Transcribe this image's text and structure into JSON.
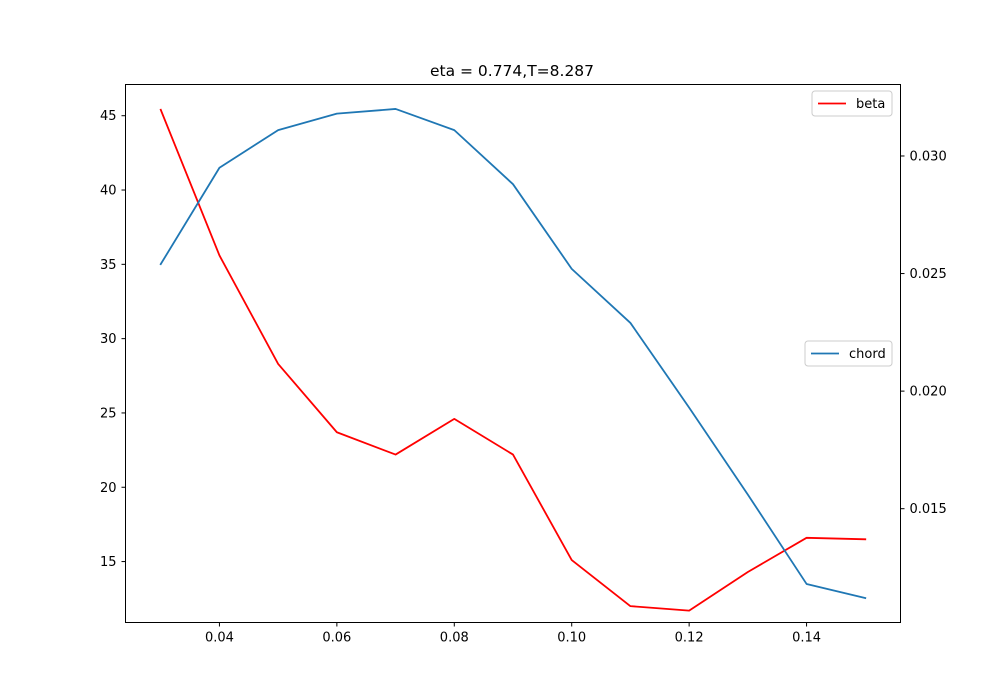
{
  "chart_data": {
    "type": "line",
    "title": "eta = 0.774,T=8.287",
    "xlabel": "",
    "ylabel": "",
    "y2label": "",
    "x": [
      0.03,
      0.04,
      0.05,
      0.06,
      0.07,
      0.08,
      0.09,
      0.1,
      0.11,
      0.12,
      0.13,
      0.14,
      0.15
    ],
    "xlim": [
      0.024,
      0.156
    ],
    "ylim": [
      10.9,
      47.1
    ],
    "y2lim": [
      0.01016,
      0.03304
    ],
    "x_ticks": [
      "0.04",
      "0.06",
      "0.08",
      "0.10",
      "0.12",
      "0.14"
    ],
    "y_ticks": [
      "15",
      "20",
      "25",
      "30",
      "35",
      "40",
      "45"
    ],
    "y2_ticks": [
      "0.015",
      "0.020",
      "0.025",
      "0.030"
    ],
    "grid": false,
    "series": [
      {
        "name": "beta",
        "axis": "left",
        "color": "#ff0000",
        "legend_location": "upper right",
        "values": [
          45.4,
          35.6,
          28.3,
          23.7,
          22.2,
          24.6,
          22.2,
          15.1,
          12.0,
          11.7,
          14.3,
          16.6,
          16.5
        ]
      },
      {
        "name": "chord",
        "axis": "right",
        "color": "#1f77b4",
        "legend_location": "center right",
        "values": [
          0.0254,
          0.0295,
          0.0311,
          0.0318,
          0.032,
          0.0311,
          0.0288,
          0.0252,
          0.0229,
          0.0193,
          0.0156,
          0.0118,
          0.0112
        ]
      }
    ]
  }
}
